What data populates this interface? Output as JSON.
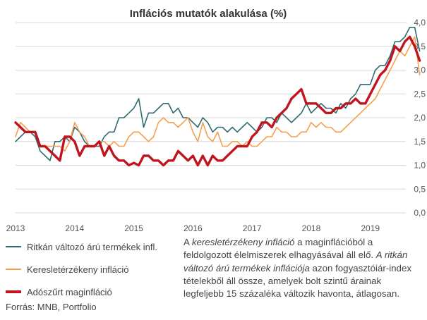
{
  "chart_data": {
    "type": "line",
    "title": "Inflációs mutatók alakulása (%)",
    "y_ticks": [
      "4,0",
      "3,5",
      "3,0",
      "2,5",
      "2,0",
      "1,5",
      "1,0",
      "0,5",
      "0,0"
    ],
    "ylim": [
      0,
      4
    ],
    "x_labels": [
      "2013",
      "2014",
      "2015",
      "2016",
      "2017",
      "2018",
      "2019"
    ],
    "x_start": 2013.0,
    "x_step_months": 1,
    "xlim": [
      2013.0,
      2019.6
    ],
    "grid": true,
    "series": [
      {
        "name": "Ritkán változó árú termékek infl.",
        "color": "#2e6b73",
        "width": 1.6,
        "values": [
          1.5,
          1.6,
          1.7,
          1.7,
          1.6,
          1.3,
          1.2,
          1.1,
          1.5,
          1.5,
          1.6,
          1.5,
          1.8,
          1.7,
          1.5,
          1.4,
          1.4,
          1.4,
          1.6,
          1.7,
          1.7,
          2.0,
          2.0,
          2.1,
          2.2,
          2.4,
          1.8,
          2.1,
          2.1,
          2.2,
          2.3,
          2.3,
          2.1,
          2.2,
          2.0,
          2.0,
          1.9,
          1.8,
          2.0,
          1.9,
          1.7,
          1.8,
          1.8,
          1.7,
          1.8,
          1.7,
          1.8,
          1.9,
          1.8,
          1.7,
          1.8,
          2.0,
          2.0,
          1.9,
          2.1,
          2.0,
          1.9,
          2.0,
          2.1,
          2.3,
          2.1,
          2.2,
          2.3,
          2.2,
          2.2,
          2.1,
          2.3,
          2.2,
          2.4,
          2.5,
          2.7,
          2.7,
          2.7,
          3.0,
          3.1,
          3.1,
          3.3,
          3.6,
          3.6,
          3.7,
          3.9,
          3.9,
          3.4
        ]
      },
      {
        "name": "Keresletérzékeny infláció",
        "color": "#f5a04e",
        "width": 1.6,
        "values": [
          1.6,
          1.9,
          1.8,
          1.7,
          1.7,
          1.4,
          1.4,
          1.4,
          1.4,
          1.4,
          1.3,
          1.5,
          1.9,
          1.7,
          1.6,
          1.4,
          1.4,
          1.5,
          1.5,
          1.4,
          1.5,
          1.4,
          1.4,
          1.6,
          1.7,
          1.7,
          1.6,
          1.5,
          1.6,
          1.9,
          2.0,
          1.9,
          1.9,
          1.8,
          1.9,
          2.0,
          1.7,
          1.5,
          1.9,
          1.6,
          1.5,
          1.7,
          1.4,
          1.4,
          1.5,
          1.5,
          1.4,
          1.5,
          1.4,
          1.4,
          1.5,
          1.6,
          1.6,
          1.8,
          1.7,
          1.7,
          1.6,
          1.6,
          1.7,
          1.7,
          1.9,
          1.8,
          1.9,
          1.8,
          1.8,
          1.7,
          1.7,
          1.8,
          1.9,
          2.0,
          2.1,
          2.2,
          2.3,
          2.4,
          2.6,
          2.8,
          3.0,
          3.2,
          3.4,
          3.3,
          3.5,
          3.7,
          2.9
        ]
      },
      {
        "name": "Adószűrt maginfláció",
        "color": "#c0141e",
        "width": 3.4,
        "values": [
          1.9,
          1.8,
          1.7,
          1.7,
          1.7,
          1.4,
          1.4,
          1.3,
          1.2,
          1.1,
          1.6,
          1.6,
          1.5,
          1.2,
          1.4,
          1.4,
          1.4,
          1.5,
          1.2,
          1.4,
          1.2,
          1.1,
          1.1,
          1.0,
          1.05,
          1.0,
          1.2,
          1.2,
          1.1,
          1.1,
          1.0,
          1.1,
          1.1,
          1.3,
          1.2,
          1.1,
          1.2,
          1.0,
          1.2,
          1.0,
          1.2,
          1.1,
          1.1,
          1.2,
          1.3,
          1.4,
          1.4,
          1.4,
          1.6,
          1.7,
          1.9,
          1.9,
          1.8,
          2.0,
          2.1,
          2.2,
          2.4,
          2.5,
          2.6,
          2.3,
          2.3,
          2.3,
          2.2,
          2.1,
          2.1,
          2.2,
          2.2,
          2.3,
          2.3,
          2.4,
          2.3,
          2.3,
          2.5,
          2.7,
          2.9,
          3.0,
          3.2,
          3.5,
          3.4,
          3.6,
          3.7,
          3.5,
          3.2
        ]
      }
    ]
  },
  "legend": [
    {
      "label": "Ritkán változó árú termékek infl.",
      "color": "#2e6b73"
    },
    {
      "label": "Keresletérzékeny infláció",
      "color": "#f5a04e"
    },
    {
      "label": "Adószűrt maginfláció",
      "color": "#c0141e"
    }
  ],
  "note": {
    "p1": "A ",
    "p2": "keresletérzékeny infláció",
    "p3": " a maginflációból a feldolgozott élelmiszerek elhagyásával áll elő. ",
    "p4": "A ritkán változó árú termékek inflációja",
    "p5": " azon fogyasztóiár-index tételekből áll össze, amelyek bolt szintű árainak legfeljebb 15 százaléka változik havonta, átlagosan."
  },
  "source": "Forrás: MNB, Portfolio"
}
